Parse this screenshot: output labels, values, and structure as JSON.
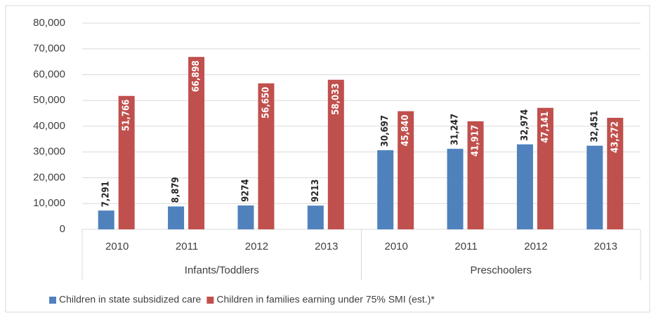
{
  "chart_data": {
    "type": "bar",
    "categories": [
      "2010",
      "2011",
      "2012",
      "2013",
      "2010",
      "2011",
      "2012",
      "2013"
    ],
    "groups": [
      "Infants/Toddlers",
      "Preschoolers"
    ],
    "series": [
      {
        "name": "Children in state subsidized care",
        "color": "#4f81bd",
        "values": [
          7291,
          8879,
          9274,
          9213,
          30697,
          31247,
          32974,
          32451
        ],
        "value_labels": [
          "7,291",
          "8,879",
          "9274",
          "9213",
          "30,697",
          "31,247",
          "32,974",
          "32,451"
        ]
      },
      {
        "name": "Children in families earning under 75% SMI (est.)*",
        "color": "#c0504d",
        "values": [
          51766,
          66898,
          56650,
          58033,
          45840,
          41917,
          47141,
          43272
        ],
        "value_labels": [
          "51,766",
          "66,898",
          "56,650",
          "58,033",
          "45,840",
          "41,917",
          "47,141",
          "43,272"
        ]
      }
    ],
    "ylim": [
      0,
      80000
    ],
    "yticks": [
      0,
      {
        "value": 10000,
        "label": "10,000"
      },
      {
        "value": 20000,
        "label": "20,000"
      },
      {
        "value": 30000,
        "label": "30,000"
      },
      {
        "value": 40000,
        "label": "40,000"
      },
      {
        "value": 50000,
        "label": "50,000"
      },
      {
        "value": 60000,
        "label": "60,000"
      },
      {
        "value": 70000,
        "label": "70,000"
      },
      {
        "value": 80000,
        "label": "80,000"
      }
    ],
    "grid": true
  }
}
